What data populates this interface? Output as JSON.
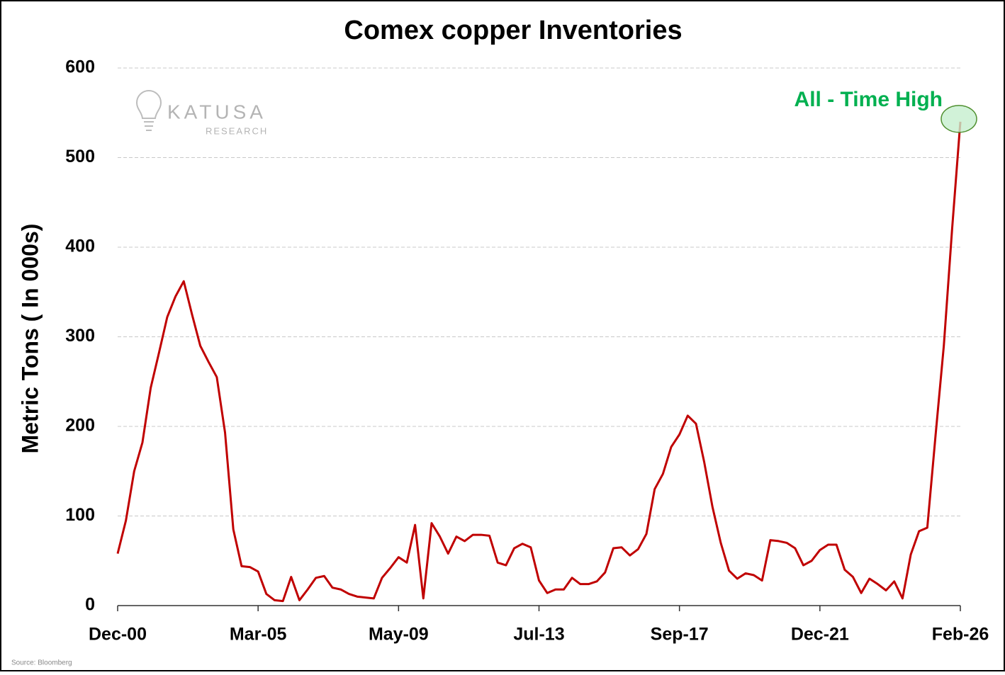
{
  "chart_data": {
    "type": "line",
    "title": "Comex copper Inventories",
    "y_label": "Metric Tons ( In 000s)",
    "categories": [
      "Dec-00",
      null,
      null,
      null,
      null,
      null,
      null,
      null,
      null,
      null,
      null,
      null,
      null,
      null,
      null,
      null,
      null,
      "Mar-05",
      null,
      null,
      null,
      null,
      null,
      null,
      null,
      null,
      null,
      null,
      null,
      null,
      null,
      null,
      null,
      null,
      "May-09",
      null,
      null,
      null,
      null,
      null,
      null,
      null,
      null,
      null,
      null,
      null,
      null,
      null,
      null,
      null,
      null,
      "Jul-13",
      null,
      null,
      null,
      null,
      null,
      null,
      null,
      null,
      null,
      null,
      null,
      null,
      null,
      null,
      null,
      null,
      "Sep-17",
      null,
      null,
      null,
      null,
      null,
      null,
      null,
      null,
      null,
      null,
      null,
      null,
      null,
      null,
      null,
      null,
      "Dec-21",
      null,
      null,
      null,
      null,
      null,
      null,
      null,
      null,
      null,
      null,
      null,
      null,
      null,
      null,
      null,
      null,
      "Feb-26"
    ],
    "values": [
      58,
      95,
      150,
      182,
      243,
      282,
      322,
      345,
      362,
      325,
      290,
      272,
      255,
      193,
      85,
      44,
      43,
      38,
      13,
      6,
      5,
      32,
      6,
      18,
      31,
      33,
      20,
      18,
      13,
      10,
      9,
      8,
      31,
      42,
      54,
      48,
      90,
      8,
      92,
      77,
      58,
      77,
      72,
      79,
      79,
      78,
      48,
      45,
      64,
      69,
      65,
      28,
      14,
      18,
      18,
      31,
      24,
      24,
      27,
      37,
      64,
      65,
      56,
      63,
      80,
      130,
      147,
      177,
      191,
      212,
      203,
      160,
      110,
      70,
      39,
      30,
      36,
      34,
      28,
      73,
      72,
      70,
      64,
      45,
      50,
      62,
      68,
      68,
      40,
      32,
      14,
      30,
      24,
      17,
      27,
      8,
      57,
      83,
      87,
      190,
      290,
      420,
      540
    ],
    "color": "#c00000",
    "ylim": [
      0,
      600
    ],
    "yticks": [
      0,
      100,
      200,
      300,
      400,
      500,
      600
    ],
    "grid": true,
    "annotation": "All - Time High",
    "annotation_color": "#00b050",
    "source": "Source: Bloomberg"
  },
  "logo": {
    "name": "KATUSA",
    "tagline": "RESEARCH"
  }
}
